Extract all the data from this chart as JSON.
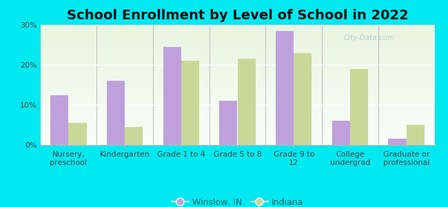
{
  "title": "School Enrollment by Level of School in 2022",
  "categories": [
    "Nursery,\npreschool",
    "Kindergarten",
    "Grade 1 to 4",
    "Grade 5 to 8",
    "Grade 9 to\n12",
    "College\nundergrad",
    "Graduate or\nprofessional"
  ],
  "winslow_values": [
    12.5,
    16,
    24.5,
    11,
    28.5,
    6,
    1.5
  ],
  "indiana_values": [
    5.5,
    4.5,
    21,
    21.5,
    23,
    19,
    5
  ],
  "winslow_color": "#c0a0dc",
  "indiana_color": "#c8d898",
  "background_outer": "#00e8f0",
  "ylim": [
    0,
    30
  ],
  "yticks": [
    0,
    10,
    20,
    30
  ],
  "ytick_labels": [
    "0%",
    "10%",
    "20%",
    "30%"
  ],
  "legend_winslow": "Winslow, IN",
  "legend_indiana": "Indiana",
  "title_fontsize": 14,
  "tick_fontsize": 8,
  "legend_fontsize": 9,
  "bar_width": 0.32,
  "watermark": "City-Data.com"
}
